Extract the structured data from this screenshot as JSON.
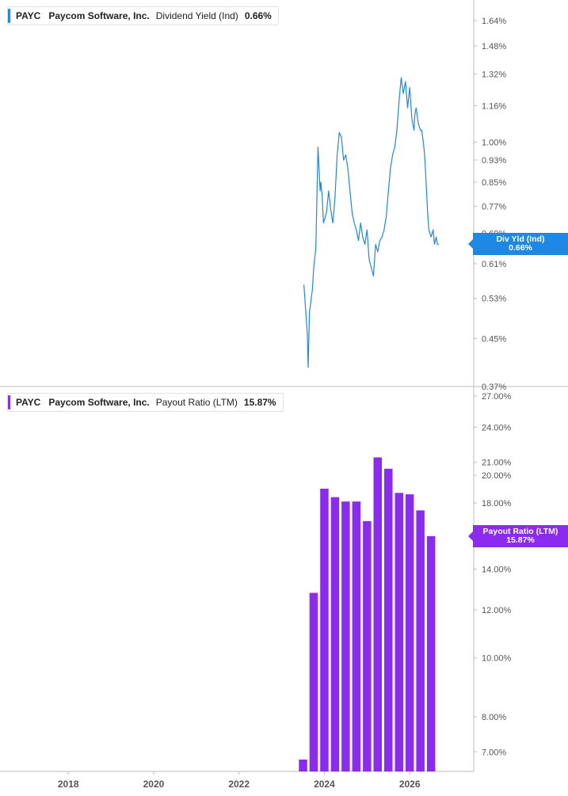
{
  "colors": {
    "yield_line": "#1e88e5",
    "payout_bar": "#8c2bf0",
    "axis": "#bdbdbd",
    "label": "#555555"
  },
  "chart_data": [
    {
      "type": "line",
      "ticker": "PAYC",
      "company": "Paycom Software, Inc.",
      "metric": "Dividend Yield (Ind)",
      "value_label": "0.66%",
      "tag_label": "Div Yld (Ind)",
      "scale": "log",
      "ylim": [
        0.37,
        1.75
      ],
      "yticks": [
        "1.64%",
        "1.48%",
        "1.32%",
        "1.16%",
        "1.00%",
        "0.93%",
        "0.85%",
        "0.77%",
        "0.69%",
        "0.61%",
        "0.53%",
        "0.45%",
        "0.37%"
      ],
      "ytick_values": [
        1.64,
        1.48,
        1.32,
        1.16,
        1.0,
        0.93,
        0.85,
        0.77,
        0.69,
        0.61,
        0.53,
        0.45,
        0.37
      ],
      "x": [
        2023.52,
        2023.55,
        2023.6,
        2023.62,
        2023.65,
        2023.68,
        2023.72,
        2023.75,
        2023.8,
        2023.85,
        2023.9,
        2023.92,
        2023.95,
        2023.98,
        2024.05,
        2024.1,
        2024.15,
        2024.2,
        2024.25,
        2024.3,
        2024.35,
        2024.4,
        2024.45,
        2024.5,
        2024.55,
        2024.6,
        2024.65,
        2024.7,
        2024.75,
        2024.8,
        2024.85,
        2024.9,
        2024.95,
        2025.0,
        2025.05,
        2025.1,
        2025.15,
        2025.2,
        2025.25,
        2025.3,
        2025.35,
        2025.4,
        2025.45,
        2025.5,
        2025.55,
        2025.6,
        2025.65,
        2025.7,
        2025.75,
        2025.8,
        2025.85,
        2025.9,
        2025.95,
        2026.0,
        2026.05,
        2026.1,
        2026.12,
        2026.15,
        2026.2,
        2026.25,
        2026.28,
        2026.32,
        2026.35,
        2026.38,
        2026.42,
        2026.45,
        2026.5,
        2026.55,
        2026.58,
        2026.62,
        2026.65,
        2026.68
      ],
      "y": [
        0.56,
        0.52,
        0.46,
        0.4,
        0.5,
        0.52,
        0.55,
        0.6,
        0.65,
        0.98,
        0.82,
        0.85,
        0.8,
        0.72,
        0.75,
        0.82,
        0.76,
        0.72,
        0.8,
        0.95,
        1.04,
        1.02,
        0.93,
        0.95,
        0.9,
        0.82,
        0.75,
        0.72,
        0.7,
        0.67,
        0.72,
        0.68,
        0.66,
        0.7,
        0.62,
        0.6,
        0.58,
        0.66,
        0.64,
        0.67,
        0.68,
        0.7,
        0.74,
        0.82,
        0.9,
        0.95,
        0.98,
        1.05,
        1.18,
        1.3,
        1.22,
        1.28,
        1.15,
        1.25,
        1.1,
        1.05,
        1.12,
        1.15,
        1.08,
        1.05,
        1.05,
        1.0,
        0.95,
        0.86,
        0.75,
        0.7,
        0.68,
        0.7,
        0.66,
        0.68,
        0.66,
        0.66
      ]
    },
    {
      "type": "bar",
      "ticker": "PAYC",
      "company": "Paycom Software, Inc.",
      "metric": "Payout Ratio (LTM)",
      "value_label": "15.87%",
      "tag_label": "Payout Ratio (LTM)",
      "scale": "log",
      "ylim": [
        6.5,
        28
      ],
      "yticks": [
        "27.00%",
        "24.00%",
        "21.00%",
        "20.00%",
        "18.00%",
        "14.00%",
        "12.00%",
        "10.00%",
        "8.00%",
        "7.00%"
      ],
      "ytick_values": [
        27,
        24,
        21,
        20,
        18,
        14,
        12,
        10,
        8,
        7
      ],
      "x": [
        2023.5,
        2023.75,
        2024.0,
        2024.25,
        2024.5,
        2024.75,
        2025.0,
        2025.25,
        2025.5,
        2025.75,
        2026.0,
        2026.25,
        2026.5
      ],
      "values": [
        6.8,
        12.8,
        19.0,
        18.4,
        18.1,
        18.1,
        16.8,
        21.4,
        20.5,
        18.7,
        18.6,
        17.5,
        15.87
      ]
    }
  ],
  "x_axis": {
    "ticks": [
      "2018",
      "2020",
      "2022",
      "2024",
      "2026"
    ],
    "tick_values": [
      2018,
      2020,
      2022,
      2024,
      2026
    ],
    "xlim": [
      2016.4,
      2027.5
    ]
  }
}
